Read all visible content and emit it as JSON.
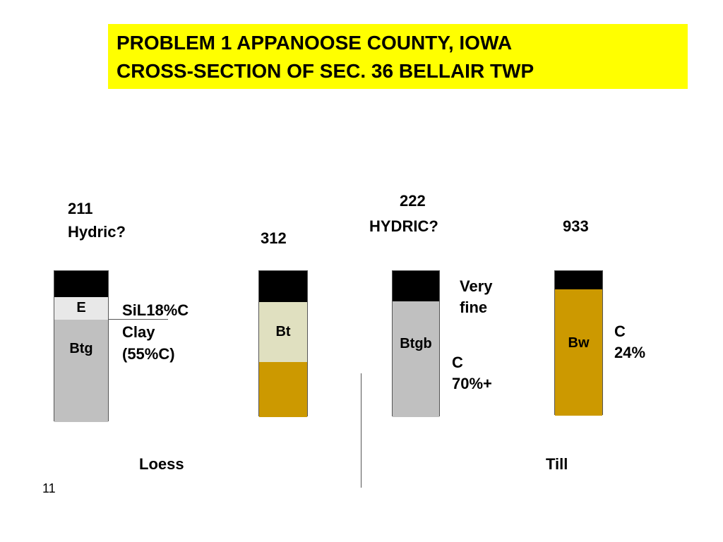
{
  "title": {
    "line1": "PROBLEM 1 APPANOOSE COUNTY, IOWA",
    "line2": "CROSS-SECTION OF SEC. 36 BELLAIR TWP"
  },
  "profiles": [
    {
      "id": "211",
      "label": "211",
      "sublabel": "Hydric?",
      "horizons": [
        "",
        "E",
        "Btg"
      ]
    },
    {
      "id": "312",
      "label": "312",
      "horizons": [
        "",
        "Bt",
        ""
      ]
    },
    {
      "id": "222",
      "label": "222",
      "sublabel": "HYDRIC?",
      "horizons": [
        "",
        "Btgb"
      ]
    },
    {
      "id": "933",
      "label": "933",
      "horizons": [
        "",
        "Bw"
      ]
    }
  ],
  "notes": {
    "p211_line1": "SiL18%C",
    "p211_line2": "Clay",
    "p211_line3": "(55%C)",
    "p222_top1": "Very",
    "p222_top2": "fine",
    "p222_c1": "C",
    "p222_c2": "70%+",
    "p933_c1": "C",
    "p933_c2": "24%"
  },
  "materials": {
    "left": "Loess",
    "right": "Till"
  },
  "slide_number": "11",
  "colors": {
    "title_bg": "#ffff00",
    "black_cap": "#000000",
    "e_horizon": "#e8e8e8",
    "gleyed_gray": "#c0c0c0",
    "bt_cream": "#e0e0c0",
    "ochre": "#cc9900"
  }
}
